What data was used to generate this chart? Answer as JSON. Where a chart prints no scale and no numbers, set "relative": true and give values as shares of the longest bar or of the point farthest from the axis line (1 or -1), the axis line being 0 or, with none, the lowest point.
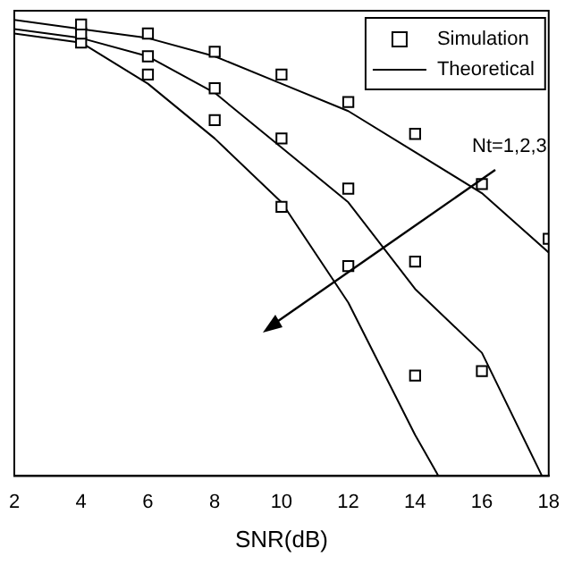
{
  "chart_data": {
    "type": "line",
    "xlabel": "SNR(dB)",
    "relative": true,
    "xlim": [
      2,
      18
    ],
    "xticks": [
      2,
      4,
      6,
      8,
      10,
      12,
      14,
      16,
      18
    ],
    "grid": false,
    "legend": "top right",
    "annotations": [
      "Nt=1,2,3"
    ],
    "series": [
      {
        "type": "scatter",
        "name": "Simulation",
        "color": "#000000",
        "marker": "square",
        "x": [
          4,
          6,
          8,
          10,
          12,
          14,
          16,
          18
        ],
        "values": [
          0.99,
          0.97,
          0.93,
          0.88,
          0.82,
          0.75,
          0.64,
          0.52
        ]
      },
      {
        "type": "scatter",
        "color": "#000000",
        "marker": "square",
        "x": [
          4,
          6,
          8,
          10,
          12,
          14,
          16
        ],
        "values": [
          0.97,
          0.92,
          0.85,
          0.74,
          0.63,
          0.47,
          0.23
        ]
      },
      {
        "type": "scatter",
        "color": "#000000",
        "marker": "square",
        "x": [
          4,
          6,
          8,
          10,
          12,
          14
        ],
        "values": [
          0.95,
          0.88,
          0.78,
          0.59,
          0.46,
          0.22
        ]
      },
      {
        "name": "Theoretical",
        "color": "#000000",
        "marker": "none",
        "line_style": "solid",
        "x": [
          2,
          4,
          6,
          8,
          10,
          12,
          14,
          16,
          18
        ],
        "values": [
          1.0,
          0.98,
          0.96,
          0.92,
          0.86,
          0.8,
          0.71,
          0.62,
          0.49
        ]
      },
      {
        "color": "#000000",
        "marker": "none",
        "line_style": "solid",
        "x": [
          2,
          4,
          6,
          8,
          10,
          12,
          14,
          16,
          17.8
        ],
        "values": [
          0.98,
          0.96,
          0.92,
          0.84,
          0.72,
          0.6,
          0.41,
          0.27,
          0
        ]
      },
      {
        "color": "#000000",
        "marker": "none",
        "line_style": "solid",
        "x": [
          2,
          4,
          6,
          8,
          10,
          12,
          14,
          14.7
        ],
        "values": [
          0.97,
          0.95,
          0.86,
          0.74,
          0.6,
          0.38,
          0.09,
          0
        ]
      }
    ]
  }
}
